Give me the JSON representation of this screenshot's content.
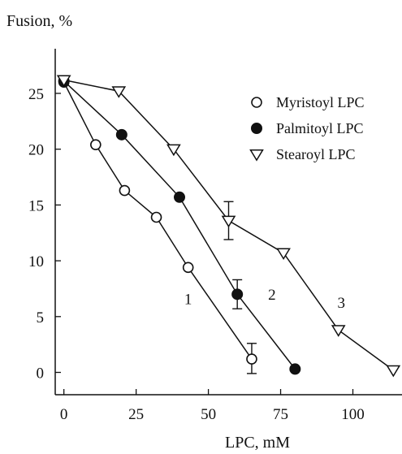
{
  "chart_data": {
    "type": "line",
    "ylabel": "Fusion, %",
    "xlabel": "LPC, mM",
    "xlim": [
      -3,
      117
    ],
    "ylim": [
      -2,
      29
    ],
    "x_ticks": [
      0,
      25,
      50,
      75,
      100
    ],
    "y_ticks": [
      0,
      5,
      10,
      15,
      20,
      25
    ],
    "grid": false,
    "legend_position": "top-right",
    "series": [
      {
        "name": "Myristoyl LPC",
        "marker": "circle-open",
        "curve_label": "1",
        "x": [
          0,
          11,
          21,
          32,
          43,
          65
        ],
        "y": [
          26,
          20.4,
          16.3,
          13.9,
          9.4,
          1.2
        ],
        "error_bars": [
          {
            "x": 65,
            "y_low": -0.1,
            "y_high": 2.6
          }
        ]
      },
      {
        "name": "Palmitoyl LPC",
        "marker": "circle-filled",
        "curve_label": "2",
        "x": [
          0,
          20,
          40,
          60,
          80
        ],
        "y": [
          26.1,
          21.3,
          15.7,
          7,
          0.3
        ],
        "error_bars": [
          {
            "x": 60,
            "y_low": 5.7,
            "y_high": 8.3
          }
        ]
      },
      {
        "name": "Stearoyl LPC",
        "marker": "triangle-down-open",
        "curve_label": "3",
        "x": [
          0,
          19,
          38,
          57,
          76,
          95,
          114
        ],
        "y": [
          26.2,
          25.2,
          20,
          13.6,
          10.7,
          3.8,
          0.2
        ],
        "error_bars": [
          {
            "x": 57,
            "y_low": 11.9,
            "y_high": 15.3
          }
        ]
      }
    ]
  }
}
